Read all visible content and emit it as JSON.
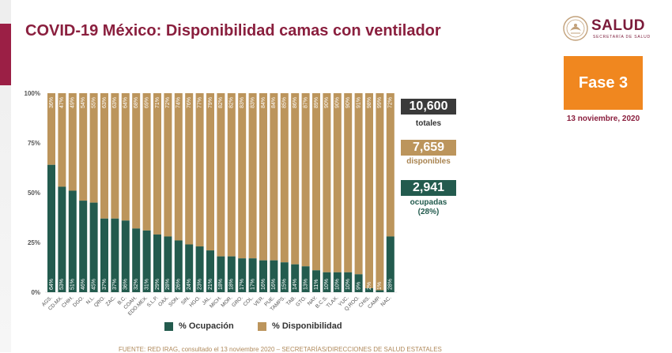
{
  "header": {
    "title": "COVID-19 México: Disponibilidad camas con ventilador",
    "logo_text": "SALUD",
    "logo_subtitle": "SECRETARÍA DE SALUD"
  },
  "phase": {
    "label": "Fase 3",
    "date": "13 noviembre, 2020"
  },
  "stats": {
    "total_value": "10,600",
    "total_label": "totales",
    "available_value": "7,659",
    "available_label": "disponibles",
    "occupied_value": "2,941",
    "occupied_label": "ocupadas",
    "occupied_pct": "(28%)"
  },
  "legend": {
    "occupied": "% Ocupación",
    "available": "% Disponibilidad"
  },
  "footer": {
    "source": "FUENTE: RED IRAG, consultado el 13 noviembre 2020 – SECRETARÍAS/DIRECCIONES DE SALUD ESTATALES"
  },
  "colors": {
    "occupied": "#235b4e",
    "available": "#bc955c",
    "total_box": "#3a3a3a",
    "accent": "#9b1f45"
  },
  "chart_data": {
    "type": "bar",
    "stacked": true,
    "title": "COVID-19 México: Disponibilidad camas con ventilador",
    "categories": [
      "AGS.",
      "CD.MX.",
      "CHIH.",
      "DGO.",
      "N.L.",
      "QRO.",
      "ZAC.",
      "B.C.",
      "COAH.",
      "EDO.MEX.",
      "S.L.P.",
      "OAX.",
      "SON.",
      "SIN.",
      "HGO.",
      "JAL.",
      "MICH.",
      "MOR.",
      "GRO.",
      "COL.",
      "VER.",
      "PUE.",
      "TAMPS.",
      "TAB.",
      "GTO.",
      "NAY.",
      "B.C.S.",
      "TLAX.",
      "YUC.",
      "Q.ROO.",
      "CHIS.",
      "CAMP.",
      "NAC."
    ],
    "series": [
      {
        "name": "% Ocupación",
        "values": [
          64,
          53,
          51,
          46,
          45,
          37,
          37,
          36,
          32,
          31,
          29,
          28,
          26,
          24,
          23,
          21,
          18,
          18,
          17,
          17,
          16,
          16,
          15,
          14,
          13,
          11,
          10,
          10,
          10,
          9,
          2,
          1,
          28
        ]
      },
      {
        "name": "% Disponibilidad",
        "values": [
          36,
          47,
          49,
          54,
          55,
          63,
          63,
          64,
          68,
          69,
          71,
          72,
          74,
          76,
          77,
          79,
          82,
          82,
          83,
          83,
          84,
          84,
          85,
          86,
          87,
          89,
          90,
          90,
          90,
          91,
          98,
          99,
          72
        ]
      }
    ],
    "yticks": [
      "0%",
      "25%",
      "50%",
      "75%",
      "100%"
    ],
    "ylim": [
      0,
      100
    ],
    "legend_position": "bottom"
  }
}
